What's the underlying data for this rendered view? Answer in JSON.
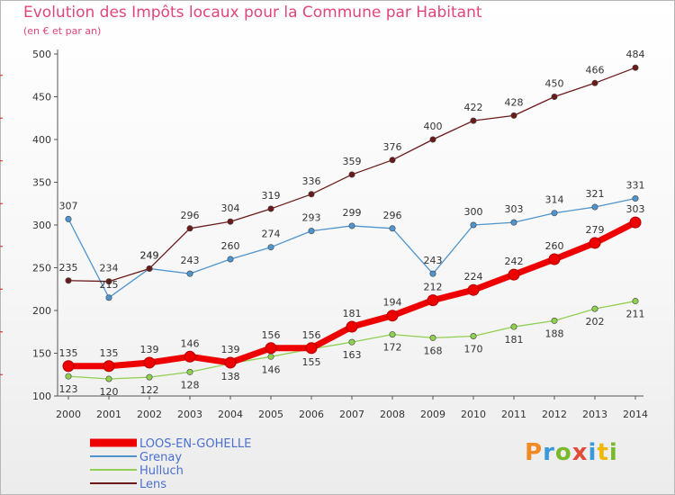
{
  "title": "Evolution des Impôts locaux pour la Commune par Habitant",
  "subtitle": "(en € et par an)",
  "logo": {
    "text": "Proxiti",
    "colors": [
      "#f08a24",
      "#3a9ad9",
      "#7ab929",
      "#e04b3a",
      "#3a9ad9",
      "#f0b800",
      "#7ab929"
    ]
  },
  "chart_data": {
    "type": "line",
    "title": "Evolution des Impôts locaux pour la Commune par Habitant",
    "subtitle": "(en € et par an)",
    "x": [
      "2000",
      "2001",
      "2002",
      "2003",
      "2004",
      "2005",
      "2006",
      "2007",
      "2008",
      "2009",
      "2010",
      "2011",
      "2012",
      "2013",
      "2014"
    ],
    "ylim": [
      100,
      500
    ],
    "yticks": [
      100,
      150,
      200,
      250,
      300,
      350,
      400,
      450,
      500
    ],
    "grid": false,
    "legend": "bottom-left",
    "series": [
      {
        "name": "LOOS-EN-GOHELLE",
        "color": "#ee0000",
        "values": [
          135,
          135,
          139,
          146,
          139,
          156,
          156,
          181,
          194,
          212,
          224,
          242,
          260,
          279,
          303
        ]
      },
      {
        "name": "Grenay",
        "color": "#4f94cd",
        "values": [
          307,
          215,
          249,
          243,
          260,
          274,
          293,
          299,
          296,
          243,
          300,
          303,
          314,
          321,
          331
        ]
      },
      {
        "name": "Hulluch",
        "color": "#90d050",
        "values": [
          123,
          120,
          122,
          128,
          138,
          146,
          155,
          163,
          172,
          168,
          170,
          181,
          188,
          202,
          211
        ]
      },
      {
        "name": "Lens",
        "color": "#6b1a1a",
        "values": [
          235,
          234,
          249,
          296,
          304,
          319,
          336,
          359,
          376,
          400,
          422,
          428,
          450,
          466,
          484
        ]
      }
    ]
  }
}
